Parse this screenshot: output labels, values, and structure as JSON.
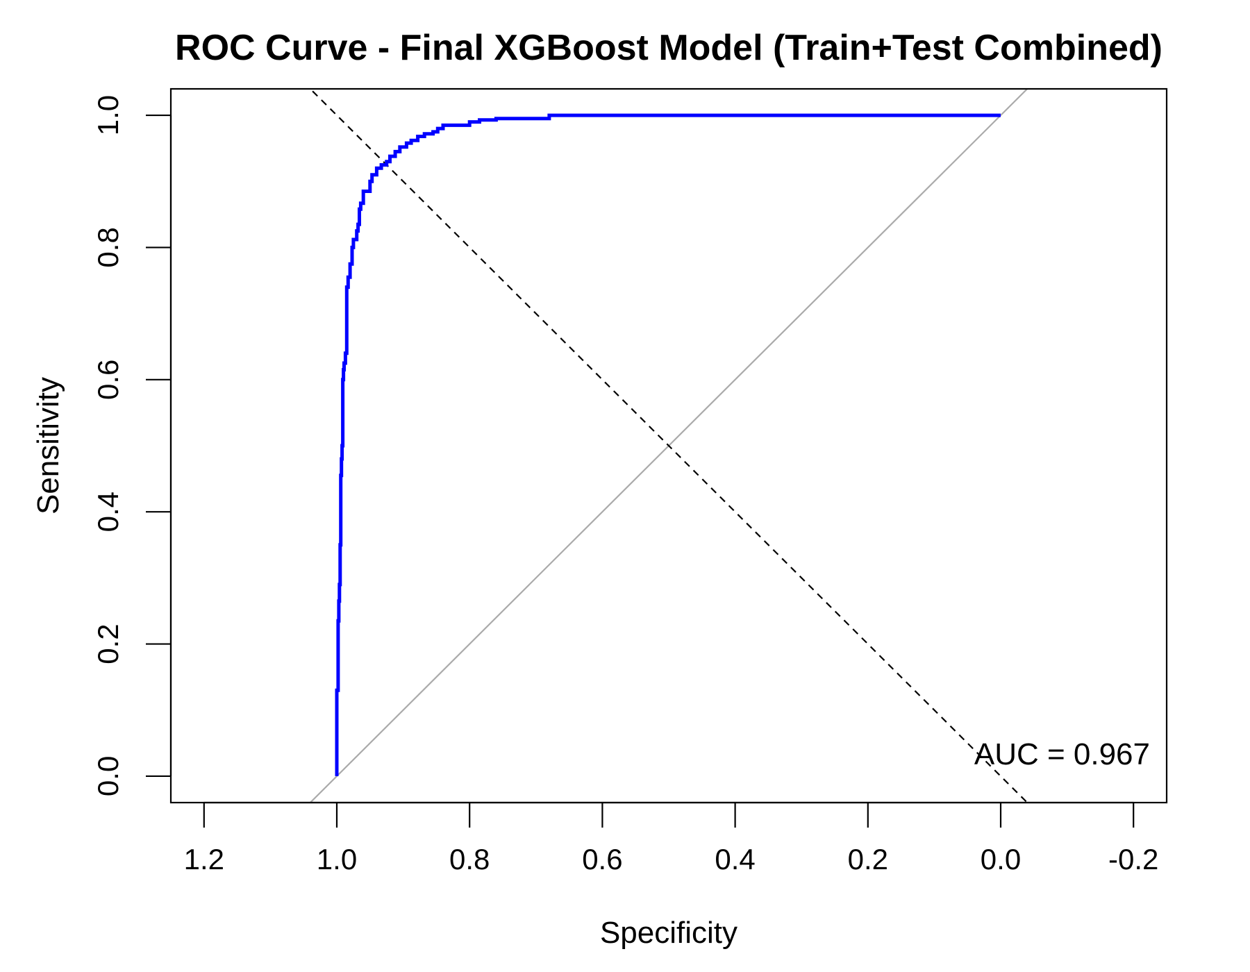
{
  "chart_data": {
    "type": "line",
    "title": "ROC Curve - Final XGBoost Model (Train+Test Combined)",
    "xlabel": "Specificity",
    "ylabel": "Sensitivity",
    "xlim": [
      1.25,
      -0.25
    ],
    "ylim": [
      -0.04,
      1.04
    ],
    "x_reversed": true,
    "grid": false,
    "x_ticks": [
      "1.2",
      "1.0",
      "0.8",
      "0.6",
      "0.4",
      "0.2",
      "0.0",
      "-0.2"
    ],
    "y_ticks": [
      "0.0",
      "0.2",
      "0.4",
      "0.6",
      "0.8",
      "1.0"
    ],
    "series": [
      {
        "color": "#0000ff",
        "style": "solid",
        "x": [
          1.0,
          1.0,
          0.998,
          0.998,
          0.997,
          0.997,
          0.996,
          0.996,
          0.995,
          0.995,
          0.994,
          0.994,
          0.993,
          0.993,
          0.992,
          0.992,
          0.991,
          0.991,
          0.99,
          0.99,
          0.989,
          0.989,
          0.987,
          0.987,
          0.985,
          0.985,
          0.983,
          0.983,
          0.98,
          0.98,
          0.977,
          0.977,
          0.975,
          0.975,
          0.97,
          0.97,
          0.968,
          0.968,
          0.966,
          0.966,
          0.964,
          0.964,
          0.96,
          0.96,
          0.95,
          0.95,
          0.947,
          0.947,
          0.94,
          0.94,
          0.933,
          0.933,
          0.925,
          0.925,
          0.92,
          0.92,
          0.912,
          0.912,
          0.905,
          0.905,
          0.895,
          0.895,
          0.888,
          0.888,
          0.878,
          0.878,
          0.868,
          0.868,
          0.855,
          0.855,
          0.848,
          0.848,
          0.84,
          0.84,
          0.8,
          0.8,
          0.785,
          0.785,
          0.76,
          0.76,
          0.68,
          0.68,
          0.0
        ],
        "y": [
          0.0,
          0.13,
          0.13,
          0.235,
          0.235,
          0.265,
          0.265,
          0.29,
          0.29,
          0.35,
          0.35,
          0.455,
          0.455,
          0.48,
          0.48,
          0.5,
          0.5,
          0.6,
          0.6,
          0.615,
          0.615,
          0.625,
          0.625,
          0.64,
          0.64,
          0.74,
          0.74,
          0.755,
          0.755,
          0.775,
          0.775,
          0.8,
          0.8,
          0.812,
          0.812,
          0.825,
          0.825,
          0.835,
          0.835,
          0.858,
          0.858,
          0.867,
          0.867,
          0.885,
          0.885,
          0.9,
          0.9,
          0.91,
          0.91,
          0.92,
          0.92,
          0.925,
          0.925,
          0.93,
          0.93,
          0.938,
          0.938,
          0.945,
          0.945,
          0.952,
          0.952,
          0.958,
          0.958,
          0.962,
          0.962,
          0.968,
          0.968,
          0.972,
          0.972,
          0.975,
          0.975,
          0.98,
          0.98,
          0.985,
          0.985,
          0.99,
          0.99,
          0.993,
          0.993,
          0.995,
          0.995,
          1.0,
          1.0
        ]
      }
    ],
    "reference_lines": [
      {
        "color": "#aaaaaa",
        "style": "solid",
        "x": [
          1.25,
          -0.25
        ],
        "y": [
          -0.25,
          1.25
        ]
      },
      {
        "color": "#000000",
        "style": "dashed",
        "x": [
          1.25,
          -0.25
        ],
        "y": [
          1.25,
          -0.25
        ]
      }
    ],
    "annotation": "AUC = 0.967"
  }
}
